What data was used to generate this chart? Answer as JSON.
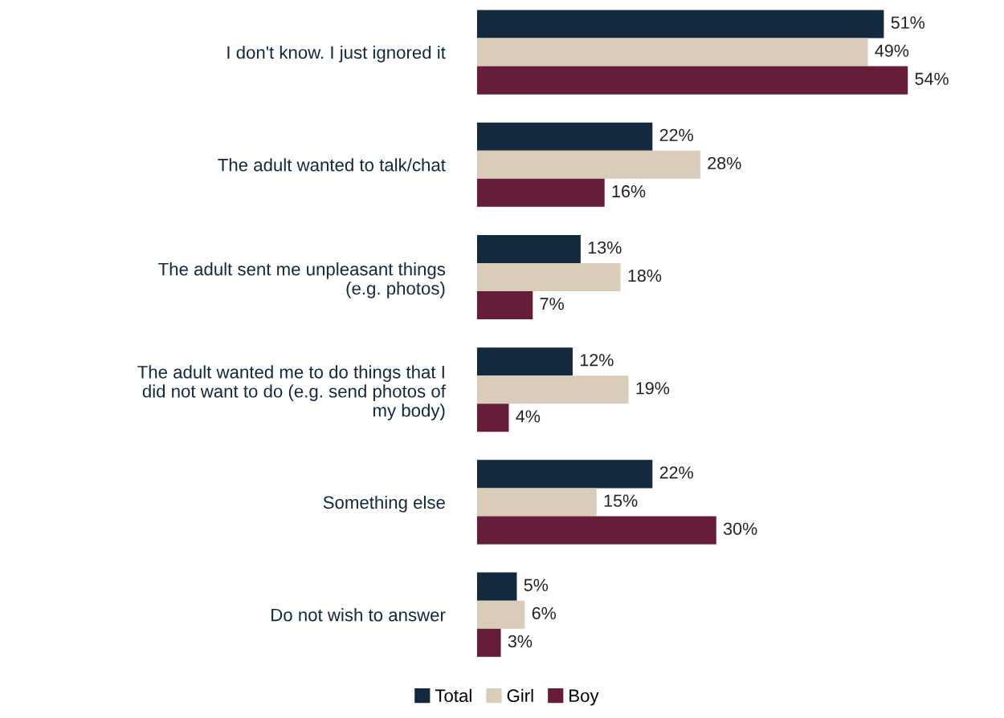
{
  "chart_data": {
    "type": "bar",
    "orientation": "horizontal",
    "legend": "bottom",
    "grid": false,
    "categories": [
      "I don't know. I just ignored it",
      "The adult wanted to talk/chat",
      "The adult sent me unpleasant things\n(e.g. photos)",
      "The adult wanted me to do things that I\ndid not want to do (e.g. send photos of\nmy body)",
      "Something else",
      "Do not wish to answer"
    ],
    "series": [
      {
        "name": "Total",
        "color": "#13293d",
        "values": [
          51,
          22,
          13,
          12,
          22,
          5
        ],
        "value_labels": [
          "51%",
          "22%",
          "13%",
          "12%",
          "22%",
          "5%"
        ]
      },
      {
        "name": "Girl",
        "color": "#d9ccb8",
        "values": [
          49,
          28,
          18,
          19,
          15,
          6
        ],
        "value_labels": [
          "49%",
          "28%",
          "18%",
          "19%",
          "15%",
          "6%"
        ]
      },
      {
        "name": "Boy",
        "color": "#651d3a",
        "values": [
          54,
          16,
          7,
          4,
          30,
          3
        ],
        "value_labels": [
          "54%",
          "16%",
          "7%",
          "4%",
          "30%",
          "3%"
        ]
      }
    ]
  }
}
